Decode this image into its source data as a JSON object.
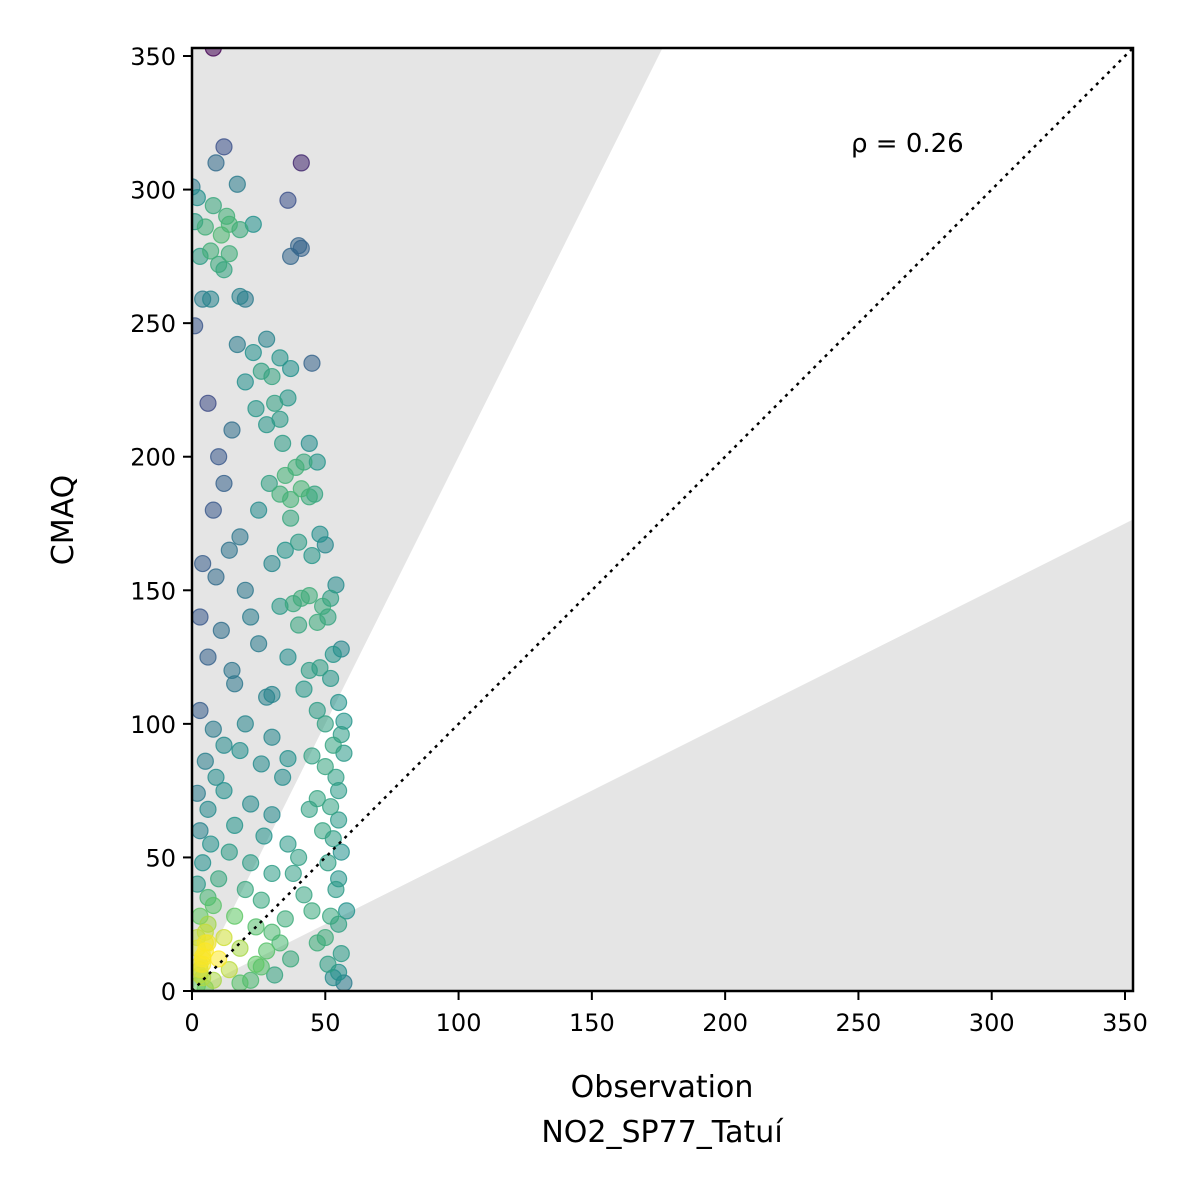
{
  "chart_data": {
    "type": "scatter",
    "title": "",
    "xlabel": "Observation",
    "xlabel_sub": "NO2_SP77_Tatuí",
    "ylabel": "CMAQ",
    "xlim": [
      0,
      353
    ],
    "ylim": [
      0,
      353
    ],
    "xticks": [
      0,
      50,
      100,
      150,
      200,
      250,
      300,
      350
    ],
    "yticks": [
      0,
      50,
      100,
      150,
      200,
      250,
      300,
      350
    ],
    "grid": false,
    "annotation": "ρ = 0.26",
    "reference_line": {
      "style": "dotted",
      "slope": 1,
      "color": "#000000"
    },
    "shaded_band": {
      "outside_factor": 2,
      "color": "#e5e5e5"
    },
    "colormap": "viridis",
    "density_colored": true,
    "point_alpha": 0.55,
    "points": [
      [
        8,
        353
      ],
      [
        0,
        301
      ],
      [
        2,
        297
      ],
      [
        12,
        316
      ],
      [
        9,
        310
      ],
      [
        41,
        310
      ],
      [
        17,
        302
      ],
      [
        36,
        296
      ],
      [
        1,
        288
      ],
      [
        8,
        294
      ],
      [
        13,
        290
      ],
      [
        5,
        286
      ],
      [
        11,
        283
      ],
      [
        14,
        287
      ],
      [
        18,
        285
      ],
      [
        23,
        287
      ],
      [
        3,
        275
      ],
      [
        7,
        277
      ],
      [
        10,
        272
      ],
      [
        12,
        270
      ],
      [
        14,
        276
      ],
      [
        40,
        279
      ],
      [
        41,
        278
      ],
      [
        37,
        275
      ],
      [
        4,
        259
      ],
      [
        7,
        259
      ],
      [
        18,
        260
      ],
      [
        20,
        259
      ],
      [
        1,
        249
      ],
      [
        17,
        242
      ],
      [
        23,
        239
      ],
      [
        28,
        244
      ],
      [
        33,
        237
      ],
      [
        37,
        233
      ],
      [
        45,
        235
      ],
      [
        26,
        232
      ],
      [
        30,
        230
      ],
      [
        20,
        228
      ],
      [
        36,
        222
      ],
      [
        31,
        220
      ],
      [
        24,
        218
      ],
      [
        33,
        214
      ],
      [
        28,
        212
      ],
      [
        34,
        205
      ],
      [
        44,
        205
      ],
      [
        47,
        198
      ],
      [
        42,
        198
      ],
      [
        39,
        196
      ],
      [
        35,
        193
      ],
      [
        29,
        190
      ],
      [
        41,
        188
      ],
      [
        46,
        186
      ],
      [
        44,
        185
      ],
      [
        33,
        186
      ],
      [
        37,
        184
      ],
      [
        25,
        180
      ],
      [
        37,
        177
      ],
      [
        48,
        171
      ],
      [
        50,
        167
      ],
      [
        40,
        168
      ],
      [
        35,
        165
      ],
      [
        45,
        163
      ],
      [
        30,
        160
      ],
      [
        54,
        152
      ],
      [
        52,
        147
      ],
      [
        44,
        148
      ],
      [
        41,
        147
      ],
      [
        38,
        145
      ],
      [
        49,
        144
      ],
      [
        33,
        144
      ],
      [
        51,
        140
      ],
      [
        47,
        138
      ],
      [
        40,
        137
      ],
      [
        56,
        128
      ],
      [
        53,
        126
      ],
      [
        36,
        125
      ],
      [
        48,
        121
      ],
      [
        44,
        120
      ],
      [
        52,
        117
      ],
      [
        42,
        113
      ],
      [
        30,
        111
      ],
      [
        55,
        108
      ],
      [
        47,
        105
      ],
      [
        57,
        101
      ],
      [
        50,
        100
      ],
      [
        56,
        96
      ],
      [
        53,
        92
      ],
      [
        57,
        89
      ],
      [
        45,
        88
      ],
      [
        36,
        87
      ],
      [
        50,
        84
      ],
      [
        54,
        80
      ],
      [
        55,
        75
      ],
      [
        47,
        72
      ],
      [
        52,
        69
      ],
      [
        44,
        68
      ],
      [
        55,
        64
      ],
      [
        49,
        60
      ],
      [
        53,
        57
      ],
      [
        56,
        52
      ],
      [
        51,
        48
      ],
      [
        55,
        42
      ],
      [
        54,
        38
      ],
      [
        58,
        30
      ],
      [
        52,
        28
      ],
      [
        55,
        25
      ],
      [
        50,
        20
      ],
      [
        47,
        18
      ],
      [
        56,
        14
      ],
      [
        51,
        10
      ],
      [
        55,
        7
      ],
      [
        57,
        3
      ],
      [
        53,
        5
      ],
      [
        40,
        50
      ],
      [
        38,
        44
      ],
      [
        42,
        36
      ],
      [
        45,
        30
      ],
      [
        35,
        27
      ],
      [
        30,
        22
      ],
      [
        33,
        18
      ],
      [
        28,
        15
      ],
      [
        37,
        12
      ],
      [
        26,
        9
      ],
      [
        31,
        6
      ],
      [
        22,
        4
      ],
      [
        24,
        10
      ],
      [
        18,
        3
      ],
      [
        20,
        150
      ],
      [
        22,
        140
      ],
      [
        25,
        130
      ],
      [
        15,
        120
      ],
      [
        28,
        110
      ],
      [
        20,
        100
      ],
      [
        30,
        95
      ],
      [
        18,
        90
      ],
      [
        26,
        85
      ],
      [
        34,
        80
      ],
      [
        12,
        75
      ],
      [
        22,
        70
      ],
      [
        30,
        66
      ],
      [
        16,
        62
      ],
      [
        27,
        58
      ],
      [
        36,
        55
      ],
      [
        14,
        52
      ],
      [
        22,
        48
      ],
      [
        30,
        44
      ],
      [
        10,
        42
      ],
      [
        20,
        38
      ],
      [
        26,
        34
      ],
      [
        8,
        32
      ],
      [
        16,
        28
      ],
      [
        24,
        24
      ],
      [
        12,
        20
      ],
      [
        6,
        18
      ],
      [
        18,
        16
      ],
      [
        10,
        12
      ],
      [
        4,
        10
      ],
      [
        14,
        8
      ],
      [
        3,
        6
      ],
      [
        8,
        4
      ],
      [
        2,
        2
      ],
      [
        5,
        1
      ],
      [
        10,
        200
      ],
      [
        15,
        210
      ],
      [
        6,
        220
      ],
      [
        12,
        190
      ],
      [
        8,
        180
      ],
      [
        18,
        170
      ],
      [
        4,
        160
      ],
      [
        14,
        165
      ],
      [
        9,
        155
      ],
      [
        3,
        140
      ],
      [
        11,
        135
      ],
      [
        6,
        125
      ],
      [
        16,
        115
      ],
      [
        3,
        105
      ],
      [
        8,
        98
      ],
      [
        12,
        92
      ],
      [
        5,
        86
      ],
      [
        9,
        80
      ],
      [
        2,
        74
      ],
      [
        6,
        68
      ],
      [
        3,
        60
      ],
      [
        7,
        55
      ],
      [
        4,
        48
      ],
      [
        2,
        40
      ],
      [
        6,
        35
      ],
      [
        3,
        28
      ],
      [
        5,
        22
      ],
      [
        2,
        16
      ],
      [
        4,
        13
      ],
      [
        3,
        8
      ],
      [
        4,
        5
      ],
      [
        5,
        15
      ],
      [
        4,
        12
      ],
      [
        3,
        10
      ],
      [
        5,
        18
      ],
      [
        2,
        20
      ],
      [
        6,
        25
      ]
    ]
  }
}
